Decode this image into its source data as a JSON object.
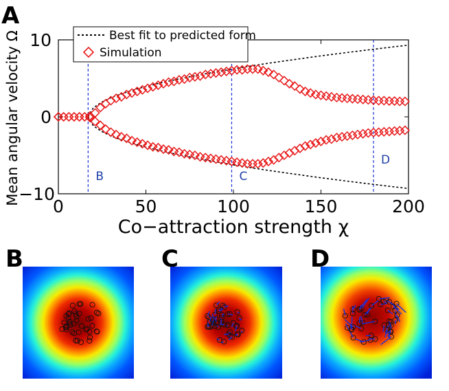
{
  "panels": {
    "a": "A",
    "b": "B",
    "c": "C",
    "d": "D"
  },
  "chart_data": {
    "type": "scatter",
    "title": "",
    "xlabel": "Co−attraction strength χ",
    "ylabel": "Mean angular velocity Ω",
    "xlim": [
      0,
      200
    ],
    "ylim": [
      -10,
      10
    ],
    "xticks": [
      "0",
      "50",
      "100",
      "150",
      "200"
    ],
    "yticks": [
      "10",
      "0",
      "−10"
    ],
    "legend": {
      "placement": "top-left",
      "entries": [
        "Best fit to predicted form",
        "Simulation"
      ]
    },
    "colors": {
      "fit": "#000000",
      "simulation": "#e8191a",
      "marker_lines": "#1a33d6",
      "marker_labels": "#1f3fa8"
    },
    "vertical_markers": [
      {
        "label": "B",
        "x": 17
      },
      {
        "label": "C",
        "x": 99
      },
      {
        "label": "D",
        "x": 180
      }
    ],
    "fit_series": {
      "name": "Best fit to predicted form",
      "style": "dotted",
      "threshold_x": 17,
      "amplitude": 0.6855,
      "x": [
        17,
        20,
        25,
        30,
        35,
        40,
        45,
        50,
        60,
        70,
        80,
        90,
        100,
        110,
        120,
        130,
        140,
        150,
        160,
        170,
        180,
        190,
        200
      ],
      "upper": [
        0,
        1.19,
        1.94,
        2.48,
        2.91,
        3.29,
        3.63,
        3.94,
        4.49,
        4.98,
        5.43,
        5.84,
        6.24,
        6.61,
        6.96,
        7.29,
        7.61,
        7.92,
        8.21,
        8.5,
        8.78,
        9.05,
        9.31
      ],
      "lower": [
        0,
        -1.19,
        -1.94,
        -2.48,
        -2.91,
        -3.29,
        -3.63,
        -3.94,
        -4.49,
        -4.98,
        -5.43,
        -5.84,
        -6.24,
        -6.61,
        -6.96,
        -7.29,
        -7.61,
        -7.92,
        -8.21,
        -8.5,
        -8.78,
        -9.05,
        -9.31
      ]
    },
    "simulation_series": {
      "name": "Simulation",
      "marker": "diamond",
      "x": [
        0,
        3,
        6,
        9,
        12,
        15,
        18,
        21,
        24,
        27,
        30,
        33,
        36,
        39,
        42,
        45,
        48,
        51,
        54,
        57,
        60,
        63,
        66,
        69,
        72,
        75,
        78,
        81,
        84,
        87,
        90,
        93,
        96,
        99,
        102,
        105,
        108,
        111,
        114,
        117,
        120,
        123,
        126,
        129,
        132,
        135,
        138,
        141,
        144,
        147,
        150,
        153,
        156,
        159,
        162,
        165,
        168,
        171,
        174,
        177,
        180,
        183,
        186,
        189,
        192,
        195,
        198,
        201
      ],
      "upper": [
        0,
        0,
        0,
        0,
        0,
        0,
        0.1,
        0.5,
        1.2,
        1.7,
        2.1,
        2.4,
        2.6,
        2.9,
        3.1,
        3.3,
        3.5,
        3.7,
        3.9,
        4.1,
        4.3,
        4.5,
        4.6,
        4.8,
        4.9,
        5.1,
        5.2,
        5.3,
        5.5,
        5.6,
        5.7,
        5.8,
        5.9,
        6.0,
        6.1,
        6.1,
        6.2,
        6.2,
        6.2,
        6.0,
        5.8,
        5.5,
        5.1,
        4.7,
        4.3,
        4.0,
        3.6,
        3.3,
        3.1,
        2.9,
        2.8,
        2.7,
        2.6,
        2.5,
        2.45,
        2.4,
        2.35,
        2.3,
        2.25,
        2.2,
        2.15,
        2.1,
        2.1,
        2.05,
        2.05,
        2.0,
        2.0,
        2.0
      ],
      "lower": [
        0,
        0,
        0,
        0,
        0,
        0,
        -0.1,
        -0.6,
        -1.1,
        -1.6,
        -2.0,
        -2.3,
        -2.6,
        -2.8,
        -3.1,
        -3.3,
        -3.5,
        -3.7,
        -3.9,
        -4.0,
        -4.2,
        -4.3,
        -4.5,
        -4.6,
        -4.8,
        -4.9,
        -5.0,
        -5.2,
        -5.3,
        -5.4,
        -5.5,
        -5.6,
        -5.7,
        -5.8,
        -5.9,
        -6.0,
        -6.1,
        -6.1,
        -6.1,
        -6.0,
        -5.8,
        -5.6,
        -5.3,
        -5.0,
        -4.7,
        -4.4,
        -4.1,
        -3.8,
        -3.6,
        -3.4,
        -3.2,
        -3.0,
        -2.9,
        -2.7,
        -2.6,
        -2.5,
        -2.4,
        -2.3,
        -2.2,
        -2.1,
        -2.05,
        -2.0,
        -1.95,
        -1.9,
        -1.85,
        -1.8,
        -1.75,
        -1.75
      ]
    }
  }
}
